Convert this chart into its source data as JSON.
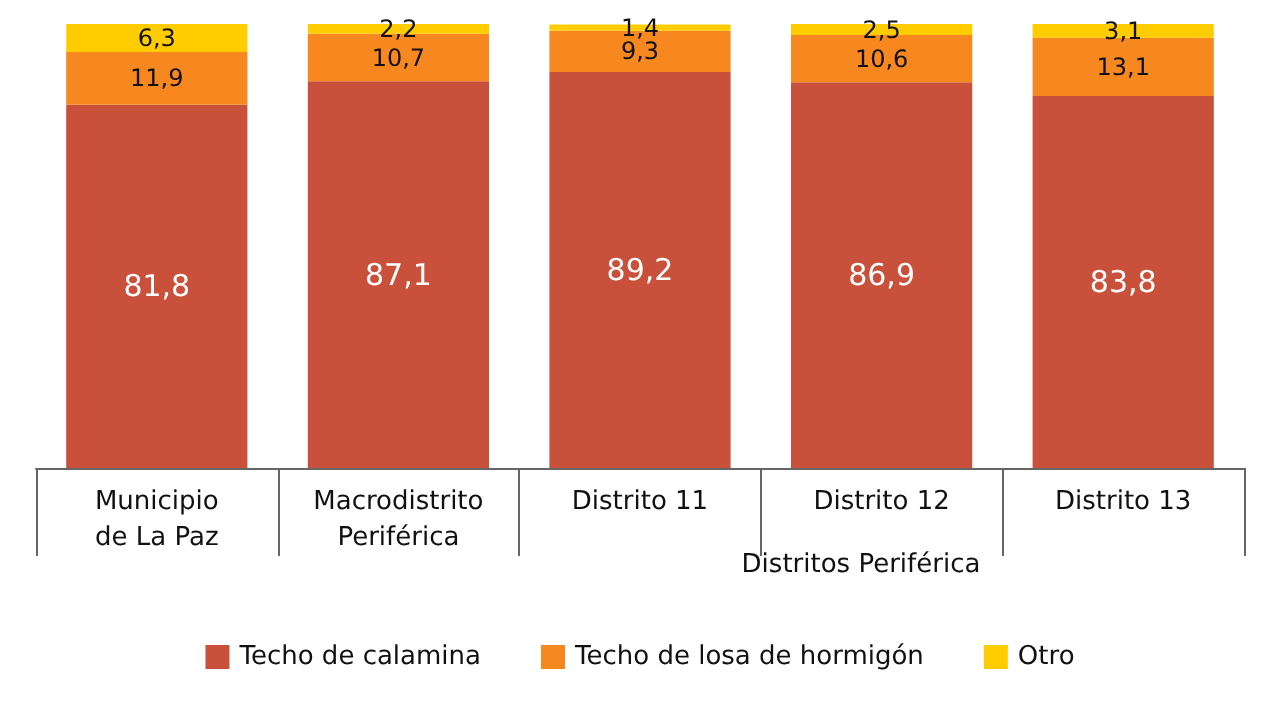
{
  "chart_data": {
    "type": "bar",
    "stacked": true,
    "legend": "bottom",
    "categories": [
      "Municipio\nde La Paz",
      "Macrodistrito\nPeriférica",
      "Distrito 11",
      "Distrito 12",
      "Distrito 13"
    ],
    "series": [
      {
        "name": "Techo de calamina",
        "color": "#c9503a",
        "values": [
          81.8,
          87.1,
          89.2,
          86.9,
          83.8
        ],
        "value_labels": [
          "81,8",
          "87,1",
          "89,2",
          "86,9",
          "83,8"
        ]
      },
      {
        "name": "Techo de losa de hormigón",
        "color": "#f7881f",
        "values": [
          11.9,
          10.7,
          9.3,
          10.6,
          13.1
        ],
        "value_labels": [
          "11,9",
          "10,7",
          "9,3",
          "10,6",
          "13,1"
        ]
      },
      {
        "name": "Otro",
        "color": "#ffcc00",
        "values": [
          6.3,
          2.2,
          1.4,
          2.5,
          3.1
        ],
        "value_labels": [
          "6,3",
          "2,2",
          "1,4",
          "2,5",
          "3,1"
        ]
      }
    ],
    "annotations": [
      "Distritos Periférica"
    ]
  }
}
